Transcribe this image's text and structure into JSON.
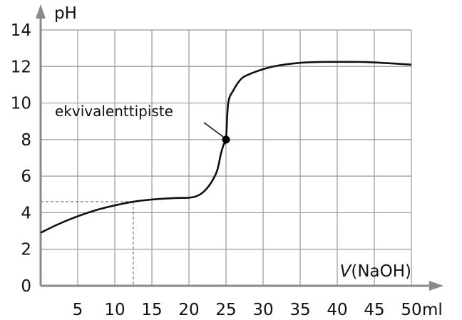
{
  "chart_data": {
    "type": "line",
    "title": "",
    "xlabel_var": "V",
    "xlabel_rest": "(NaOH)",
    "x_unit": "ml",
    "ylabel": "pH",
    "xlim": [
      0,
      50
    ],
    "ylim": [
      0,
      14
    ],
    "x_ticks": [
      5,
      10,
      15,
      20,
      25,
      30,
      35,
      40,
      45,
      50
    ],
    "y_ticks": [
      0,
      2,
      4,
      6,
      8,
      10,
      12,
      14
    ],
    "grid": true,
    "series": [
      {
        "x": [
          0,
          2,
          4,
          6,
          8,
          10,
          12.5,
          15,
          18,
          20,
          21,
          22,
          23,
          23.8,
          24.3,
          24.7,
          25.0,
          25.3,
          26,
          27,
          28,
          30,
          32,
          35,
          38,
          40,
          43,
          46,
          50
        ],
        "y": [
          2.9,
          3.3,
          3.65,
          3.95,
          4.2,
          4.4,
          4.6,
          4.72,
          4.8,
          4.82,
          4.9,
          5.15,
          5.65,
          6.3,
          7.2,
          7.75,
          8.0,
          10.0,
          10.7,
          11.3,
          11.55,
          11.85,
          12.05,
          12.2,
          12.25,
          12.25,
          12.25,
          12.2,
          12.1
        ]
      }
    ],
    "annotations": [
      {
        "label": "ekvivalenttipiste",
        "x": 25,
        "y": 8
      }
    ],
    "reference_point": {
      "x": 12.5,
      "y": 4.6
    }
  }
}
